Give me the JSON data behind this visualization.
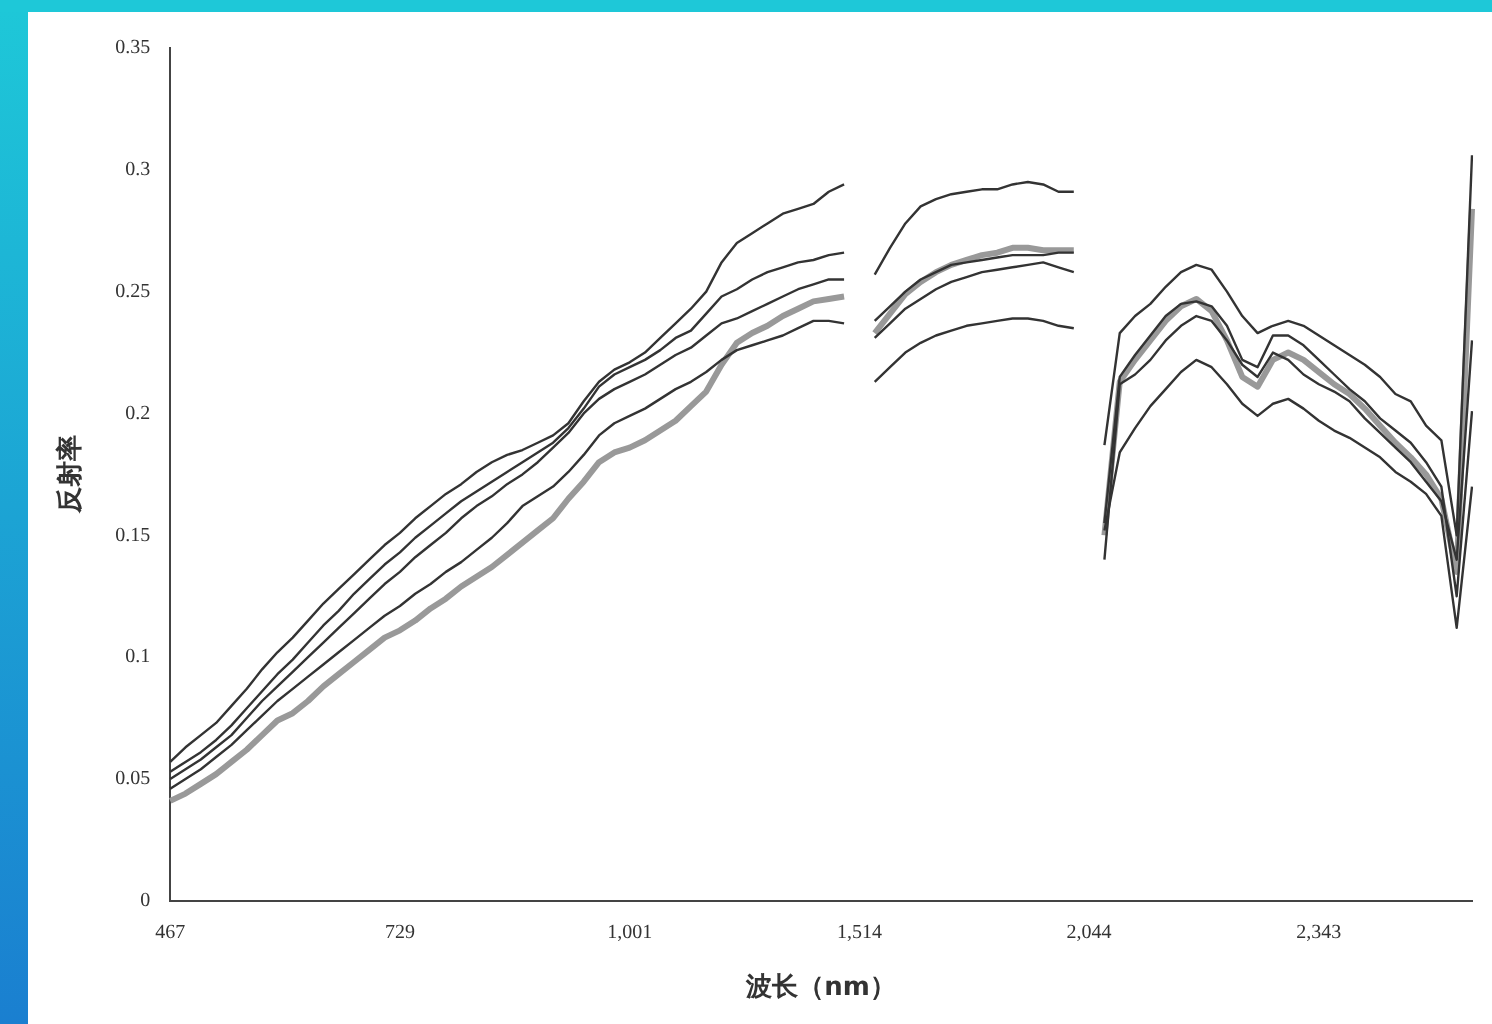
{
  "chart_data": {
    "type": "line",
    "xlabel": "波长（nm）",
    "ylabel": "反射率",
    "categories": [
      "467",
      null,
      null,
      null,
      null,
      null,
      null,
      null,
      null,
      null,
      null,
      null,
      null,
      null,
      null,
      "729",
      null,
      null,
      null,
      null,
      null,
      null,
      null,
      null,
      null,
      null,
      null,
      null,
      null,
      null,
      "1,001",
      null,
      null,
      null,
      null,
      null,
      null,
      null,
      null,
      null,
      null,
      null,
      null,
      null,
      null,
      "1,514",
      null,
      null,
      null,
      null,
      null,
      null,
      null,
      null,
      null,
      null,
      null,
      null,
      null,
      null,
      "2,044",
      null,
      null,
      null,
      null,
      null,
      null,
      null,
      null,
      null,
      null,
      null,
      null,
      null,
      null,
      "2,343",
      null,
      null,
      null,
      null,
      null,
      null,
      null,
      null,
      null,
      null
    ],
    "ylim": [
      0,
      0.35
    ],
    "yticks": [
      0,
      0.05,
      0.1,
      0.15,
      0.2,
      0.25,
      0.3,
      0.35
    ],
    "grid": false,
    "legend": false,
    "marker": "none",
    "line_style": "solid",
    "series": [
      {
        "color": "#333333",
        "values": [
          0.057,
          0.063,
          0.068,
          0.073,
          0.08,
          0.087,
          0.095,
          0.102,
          0.108,
          0.115,
          0.122,
          0.128,
          0.134,
          0.14,
          0.146,
          0.151,
          0.157,
          0.162,
          0.167,
          0.171,
          0.176,
          0.18,
          0.183,
          0.185,
          0.188,
          0.191,
          0.196,
          0.205,
          0.213,
          0.218,
          0.221,
          0.225,
          0.231,
          0.237,
          0.243,
          0.25,
          0.262,
          0.27,
          0.274,
          0.278,
          0.282,
          0.284,
          0.286,
          0.291,
          0.294,
          null,
          0.257,
          0.268,
          0.278,
          0.285,
          0.288,
          0.29,
          0.291,
          0.292,
          0.292,
          0.294,
          0.295,
          0.294,
          0.291,
          0.291,
          null,
          0.187,
          0.233,
          0.24,
          0.245,
          0.252,
          0.258,
          0.261,
          0.259,
          0.25,
          0.24,
          0.233,
          0.236,
          0.238,
          0.236,
          0.232,
          0.228,
          0.224,
          0.22,
          0.215,
          0.208,
          0.205,
          0.195,
          0.189,
          0.15,
          0.306
        ]
      },
      {
        "color": "#333333",
        "values": [
          0.053,
          0.057,
          0.061,
          0.066,
          0.072,
          0.079,
          0.086,
          0.093,
          0.099,
          0.106,
          0.113,
          0.119,
          0.126,
          0.132,
          0.138,
          0.143,
          0.149,
          0.154,
          0.159,
          0.164,
          0.168,
          0.172,
          0.176,
          0.18,
          0.184,
          0.188,
          0.194,
          0.202,
          0.211,
          0.216,
          0.219,
          0.222,
          0.226,
          0.231,
          0.234,
          0.241,
          0.248,
          0.251,
          0.255,
          0.258,
          0.26,
          0.262,
          0.263,
          0.265,
          0.266,
          null,
          0.238,
          0.244,
          0.25,
          0.255,
          0.258,
          0.261,
          0.262,
          0.263,
          0.264,
          0.265,
          0.265,
          0.265,
          0.266,
          0.266,
          null,
          0.155,
          0.215,
          0.224,
          0.232,
          0.24,
          0.245,
          0.246,
          0.244,
          0.236,
          0.222,
          0.219,
          0.232,
          0.232,
          0.228,
          0.222,
          0.216,
          0.21,
          0.205,
          0.198,
          0.193,
          0.188,
          0.18,
          0.17,
          0.125,
          0.201
        ]
      },
      {
        "color": "#333333",
        "values": [
          0.05,
          0.054,
          0.058,
          0.063,
          0.068,
          0.075,
          0.082,
          0.088,
          0.094,
          0.1,
          0.106,
          0.112,
          0.118,
          0.124,
          0.13,
          0.135,
          0.141,
          0.146,
          0.151,
          0.157,
          0.162,
          0.166,
          0.171,
          0.175,
          0.18,
          0.186,
          0.192,
          0.2,
          0.206,
          0.21,
          0.213,
          0.216,
          0.22,
          0.224,
          0.227,
          0.232,
          0.237,
          0.239,
          0.242,
          0.245,
          0.248,
          0.251,
          0.253,
          0.255,
          0.255,
          null,
          0.231,
          0.237,
          0.243,
          0.247,
          0.251,
          0.254,
          0.256,
          0.258,
          0.259,
          0.26,
          0.261,
          0.262,
          0.26,
          0.258,
          null,
          0.14,
          0.212,
          0.216,
          0.222,
          0.23,
          0.236,
          0.24,
          0.238,
          0.23,
          0.22,
          0.215,
          0.225,
          0.222,
          0.216,
          0.212,
          0.209,
          0.205,
          0.198,
          0.192,
          0.186,
          0.18,
          0.172,
          0.164,
          0.14,
          0.23
        ]
      },
      {
        "color": "#333333",
        "values": [
          0.046,
          0.05,
          0.054,
          0.059,
          0.064,
          0.07,
          0.076,
          0.082,
          0.087,
          0.092,
          0.097,
          0.102,
          0.107,
          0.112,
          0.117,
          0.121,
          0.126,
          0.13,
          0.135,
          0.139,
          0.144,
          0.149,
          0.155,
          0.162,
          0.166,
          0.17,
          0.176,
          0.183,
          0.191,
          0.196,
          0.199,
          0.202,
          0.206,
          0.21,
          0.213,
          0.217,
          0.222,
          0.226,
          0.228,
          0.23,
          0.232,
          0.235,
          0.238,
          0.238,
          0.237,
          null,
          0.213,
          0.219,
          0.225,
          0.229,
          0.232,
          0.234,
          0.236,
          0.237,
          0.238,
          0.239,
          0.239,
          0.238,
          0.236,
          0.235,
          null,
          0.152,
          0.184,
          0.194,
          0.203,
          0.21,
          0.217,
          0.222,
          0.219,
          0.212,
          0.204,
          0.199,
          0.204,
          0.206,
          0.202,
          0.197,
          0.193,
          0.19,
          0.186,
          0.182,
          0.176,
          0.172,
          0.167,
          0.158,
          0.112,
          0.17
        ]
      },
      {
        "color": "#999999",
        "values": [
          0.041,
          0.044,
          0.048,
          0.052,
          0.057,
          0.062,
          0.068,
          0.074,
          0.077,
          0.082,
          0.088,
          0.093,
          0.098,
          0.103,
          0.108,
          0.111,
          0.115,
          0.12,
          0.124,
          0.129,
          0.133,
          0.137,
          0.142,
          0.147,
          0.152,
          0.157,
          0.165,
          0.172,
          0.18,
          0.184,
          0.186,
          0.189,
          0.193,
          0.197,
          0.203,
          0.209,
          0.22,
          0.229,
          0.233,
          0.236,
          0.24,
          0.243,
          0.246,
          0.247,
          0.248,
          null,
          0.233,
          0.241,
          0.249,
          0.254,
          0.258,
          0.261,
          0.263,
          0.265,
          0.266,
          0.268,
          0.268,
          0.267,
          0.267,
          0.267,
          null,
          0.15,
          0.213,
          0.222,
          0.23,
          0.238,
          0.244,
          0.247,
          0.242,
          0.23,
          0.215,
          0.211,
          0.222,
          0.225,
          0.222,
          0.217,
          0.212,
          0.208,
          0.202,
          0.195,
          0.188,
          0.182,
          0.175,
          0.165,
          0.135,
          0.284
        ]
      }
    ]
  }
}
